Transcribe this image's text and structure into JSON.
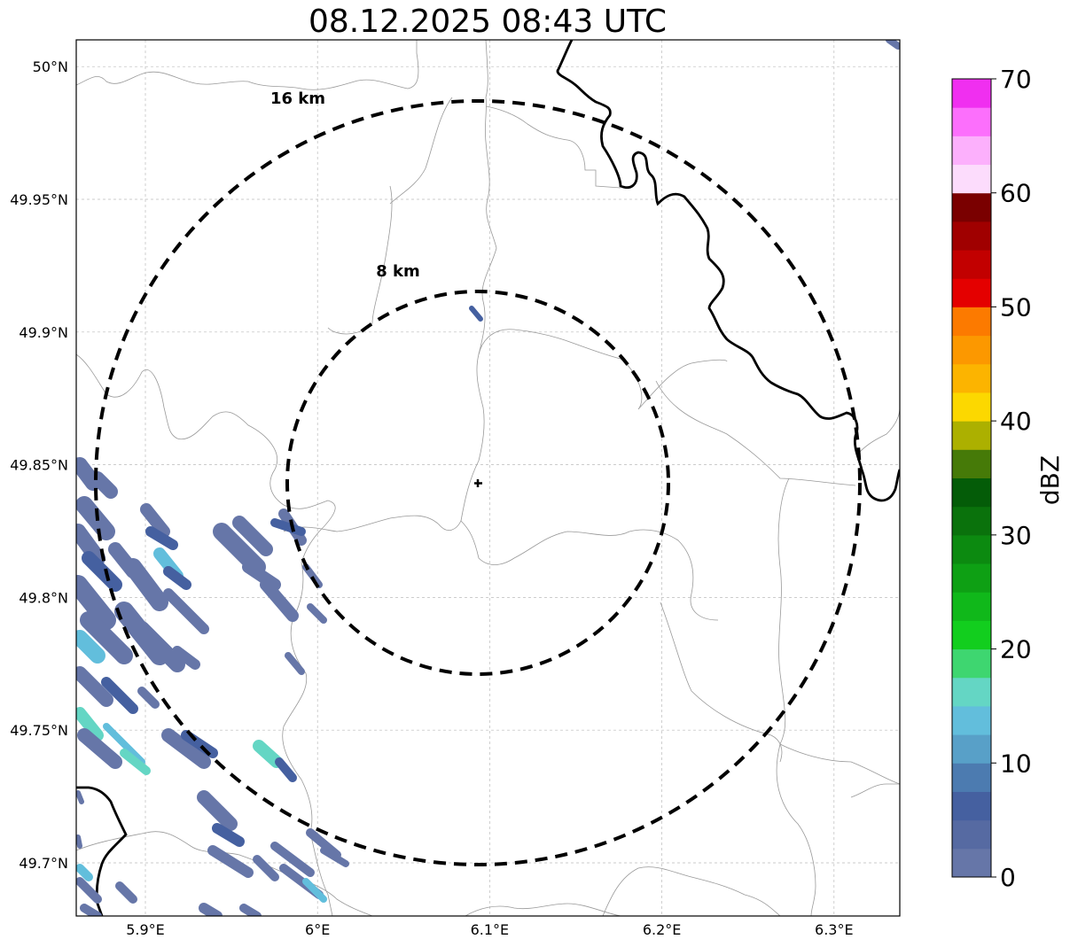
{
  "title": "08.12.2025 08:43 UTC",
  "map": {
    "lon_range": [
      5.86,
      6.34
    ],
    "lat_range": [
      49.68,
      50.01
    ],
    "lon_ticks": [
      {
        "value": 5.9,
        "label": "5.9°E"
      },
      {
        "value": 6.0,
        "label": "6°E"
      },
      {
        "value": 6.1,
        "label": "6.1°E"
      },
      {
        "value": 6.2,
        "label": "6.2°E"
      },
      {
        "value": 6.3,
        "label": "6.3°E"
      }
    ],
    "lat_ticks": [
      {
        "value": 50.0,
        "label": "50°N"
      },
      {
        "value": 49.95,
        "label": "49.95°N"
      },
      {
        "value": 49.9,
        "label": "49.9°N"
      },
      {
        "value": 49.85,
        "label": "49.85°N"
      },
      {
        "value": 49.8,
        "label": "49.8°N"
      },
      {
        "value": 49.75,
        "label": "49.75°N"
      },
      {
        "value": 49.7,
        "label": "49.7°N"
      }
    ],
    "radar_site": {
      "lon": 6.094,
      "lat": 49.843
    },
    "range_rings": [
      {
        "label": "8 km"
      },
      {
        "label": "16 km"
      }
    ],
    "grid": true
  },
  "colorbar": {
    "label": "dBZ",
    "min": 0,
    "max": 70,
    "tick_labels": [
      "0",
      "10",
      "20",
      "30",
      "40",
      "50",
      "60",
      "70"
    ],
    "colors": [
      "#6676a8",
      "#566aa2",
      "#4560a0",
      "#4c7bb0",
      "#58a0c8",
      "#62bedc",
      "#64d6c4",
      "#3ed670",
      "#12ce1e",
      "#10b81a",
      "#0ea014",
      "#0c8a10",
      "#0a720c",
      "#045c08",
      "#467a08",
      "#acb000",
      "#fcd800",
      "#fcb400",
      "#fc9800",
      "#fc7a00",
      "#e40000",
      "#c20000",
      "#a00000",
      "#7a0000",
      "#fcdcfc",
      "#fcb0fc",
      "#fc6ffc",
      "#f02ff0"
    ]
  },
  "reflectivity_colors": {
    "light": "#6676a8",
    "mid": "#4560a0",
    "cyan": "#62bedc",
    "teal": "#64d6c4"
  }
}
